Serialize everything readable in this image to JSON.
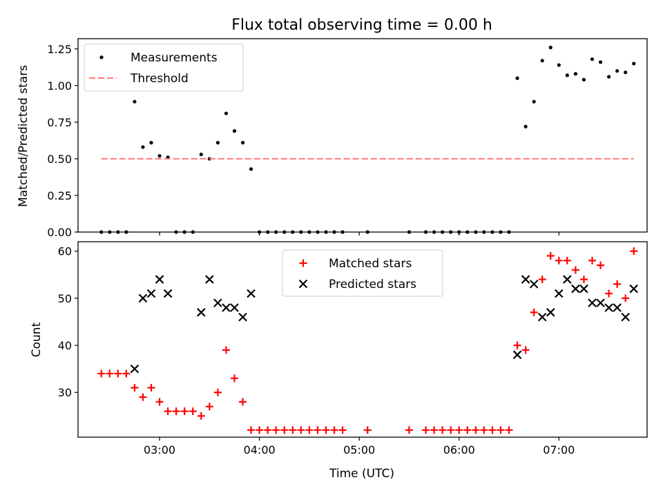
{
  "chart_data": [
    {
      "type": "scatter",
      "title": "Flux total observing time = 0.00 h",
      "xlabel": "",
      "ylabel": "Matched/Predicted stars",
      "ylim": [
        0,
        1.32
      ],
      "xlim": [
        "02:11",
        "07:53"
      ],
      "yticks": [
        "0.00",
        "0.25",
        "0.50",
        "0.75",
        "1.00",
        "1.25"
      ],
      "legend": "top-left",
      "series": [
        {
          "name": "Measurements",
          "color": "#000000",
          "marker": "dot",
          "points": [
            [
              "02:25",
              0
            ],
            [
              "02:30",
              0
            ],
            [
              "02:35",
              0
            ],
            [
              "02:40",
              0
            ],
            [
              "02:45",
              0.89
            ],
            [
              "02:50",
              0.58
            ],
            [
              "02:55",
              0.61
            ],
            [
              "03:00",
              0.52
            ],
            [
              "03:05",
              0.51
            ],
            [
              "03:10",
              0
            ],
            [
              "03:15",
              0
            ],
            [
              "03:20",
              0
            ],
            [
              "03:25",
              0.53
            ],
            [
              "03:30",
              0.5
            ],
            [
              "03:35",
              0.61
            ],
            [
              "03:40",
              0.81
            ],
            [
              "03:45",
              0.69
            ],
            [
              "03:50",
              0.61
            ],
            [
              "03:55",
              0.43
            ],
            [
              "04:00",
              0
            ],
            [
              "04:05",
              0
            ],
            [
              "04:10",
              0
            ],
            [
              "04:15",
              0
            ],
            [
              "04:20",
              0
            ],
            [
              "04:25",
              0
            ],
            [
              "04:30",
              0
            ],
            [
              "04:35",
              0
            ],
            [
              "04:40",
              0
            ],
            [
              "04:45",
              0
            ],
            [
              "04:50",
              0
            ],
            [
              "05:05",
              0
            ],
            [
              "05:30",
              0
            ],
            [
              "05:40",
              0
            ],
            [
              "05:45",
              0
            ],
            [
              "05:50",
              0
            ],
            [
              "05:55",
              0
            ],
            [
              "06:00",
              0
            ],
            [
              "06:05",
              0
            ],
            [
              "06:10",
              0
            ],
            [
              "06:15",
              0
            ],
            [
              "06:20",
              0
            ],
            [
              "06:25",
              0
            ],
            [
              "06:30",
              0
            ],
            [
              "06:35",
              1.05
            ],
            [
              "06:40",
              0.72
            ],
            [
              "06:45",
              0.89
            ],
            [
              "06:50",
              1.17
            ],
            [
              "06:55",
              1.26
            ],
            [
              "07:00",
              1.14
            ],
            [
              "07:05",
              1.07
            ],
            [
              "07:10",
              1.08
            ],
            [
              "07:15",
              1.04
            ],
            [
              "07:20",
              1.18
            ],
            [
              "07:25",
              1.16
            ],
            [
              "07:30",
              1.06
            ],
            [
              "07:35",
              1.1
            ],
            [
              "07:40",
              1.09
            ],
            [
              "07:45",
              1.15
            ]
          ]
        },
        {
          "name": "Threshold",
          "color": "#ff8080",
          "style": "dashed",
          "points": [
            [
              "02:25",
              0.5
            ],
            [
              "07:45",
              0.5
            ]
          ]
        }
      ]
    },
    {
      "type": "scatter",
      "title": "",
      "xlabel": "Time (UTC)",
      "ylabel": "Count",
      "ylim": [
        20.5,
        62
      ],
      "xlim": [
        "02:11",
        "07:53"
      ],
      "yticks": [
        "30",
        "40",
        "50",
        "60"
      ],
      "xticks": [
        "03:00",
        "04:00",
        "05:00",
        "06:00",
        "07:00"
      ],
      "legend": "top-center",
      "series": [
        {
          "name": "Matched stars",
          "color": "#ff0000",
          "marker": "plus",
          "points": [
            [
              "02:25",
              34
            ],
            [
              "02:30",
              34
            ],
            [
              "02:35",
              34
            ],
            [
              "02:40",
              34
            ],
            [
              "02:45",
              31
            ],
            [
              "02:50",
              29
            ],
            [
              "02:55",
              31
            ],
            [
              "03:00",
              28
            ],
            [
              "03:05",
              26
            ],
            [
              "03:10",
              26
            ],
            [
              "03:15",
              26
            ],
            [
              "03:20",
              26
            ],
            [
              "03:25",
              25
            ],
            [
              "03:30",
              27
            ],
            [
              "03:35",
              30
            ],
            [
              "03:40",
              39
            ],
            [
              "03:45",
              33
            ],
            [
              "03:50",
              28
            ],
            [
              "03:55",
              22
            ],
            [
              "04:00",
              22
            ],
            [
              "04:05",
              22
            ],
            [
              "04:10",
              22
            ],
            [
              "04:15",
              22
            ],
            [
              "04:20",
              22
            ],
            [
              "04:25",
              22
            ],
            [
              "04:30",
              22
            ],
            [
              "04:35",
              22
            ],
            [
              "04:40",
              22
            ],
            [
              "04:45",
              22
            ],
            [
              "04:50",
              22
            ],
            [
              "05:05",
              22
            ],
            [
              "05:30",
              22
            ],
            [
              "05:40",
              22
            ],
            [
              "05:45",
              22
            ],
            [
              "05:50",
              22
            ],
            [
              "05:55",
              22
            ],
            [
              "06:00",
              22
            ],
            [
              "06:05",
              22
            ],
            [
              "06:10",
              22
            ],
            [
              "06:15",
              22
            ],
            [
              "06:20",
              22
            ],
            [
              "06:25",
              22
            ],
            [
              "06:30",
              22
            ],
            [
              "06:35",
              40
            ],
            [
              "06:40",
              39
            ],
            [
              "06:45",
              47
            ],
            [
              "06:50",
              54
            ],
            [
              "06:55",
              59
            ],
            [
              "07:00",
              58
            ],
            [
              "07:05",
              58
            ],
            [
              "07:10",
              56
            ],
            [
              "07:15",
              54
            ],
            [
              "07:20",
              58
            ],
            [
              "07:25",
              57
            ],
            [
              "07:30",
              51
            ],
            [
              "07:35",
              53
            ],
            [
              "07:40",
              50
            ],
            [
              "07:45",
              60
            ]
          ]
        },
        {
          "name": "Predicted stars",
          "color": "#000000",
          "marker": "x",
          "points": [
            [
              "02:45",
              35
            ],
            [
              "02:50",
              50
            ],
            [
              "02:55",
              51
            ],
            [
              "03:00",
              54
            ],
            [
              "03:05",
              51
            ],
            [
              "03:25",
              47
            ],
            [
              "03:30",
              54
            ],
            [
              "03:35",
              49
            ],
            [
              "03:40",
              48
            ],
            [
              "03:45",
              48
            ],
            [
              "03:50",
              46
            ],
            [
              "03:55",
              51
            ],
            [
              "06:35",
              38
            ],
            [
              "06:40",
              54
            ],
            [
              "06:45",
              53
            ],
            [
              "06:50",
              46
            ],
            [
              "06:55",
              47
            ],
            [
              "07:00",
              51
            ],
            [
              "07:05",
              54
            ],
            [
              "07:10",
              52
            ],
            [
              "07:15",
              52
            ],
            [
              "07:20",
              49
            ],
            [
              "07:25",
              49
            ],
            [
              "07:30",
              48
            ],
            [
              "07:35",
              48
            ],
            [
              "07:40",
              46
            ],
            [
              "07:45",
              52
            ]
          ]
        }
      ]
    }
  ]
}
